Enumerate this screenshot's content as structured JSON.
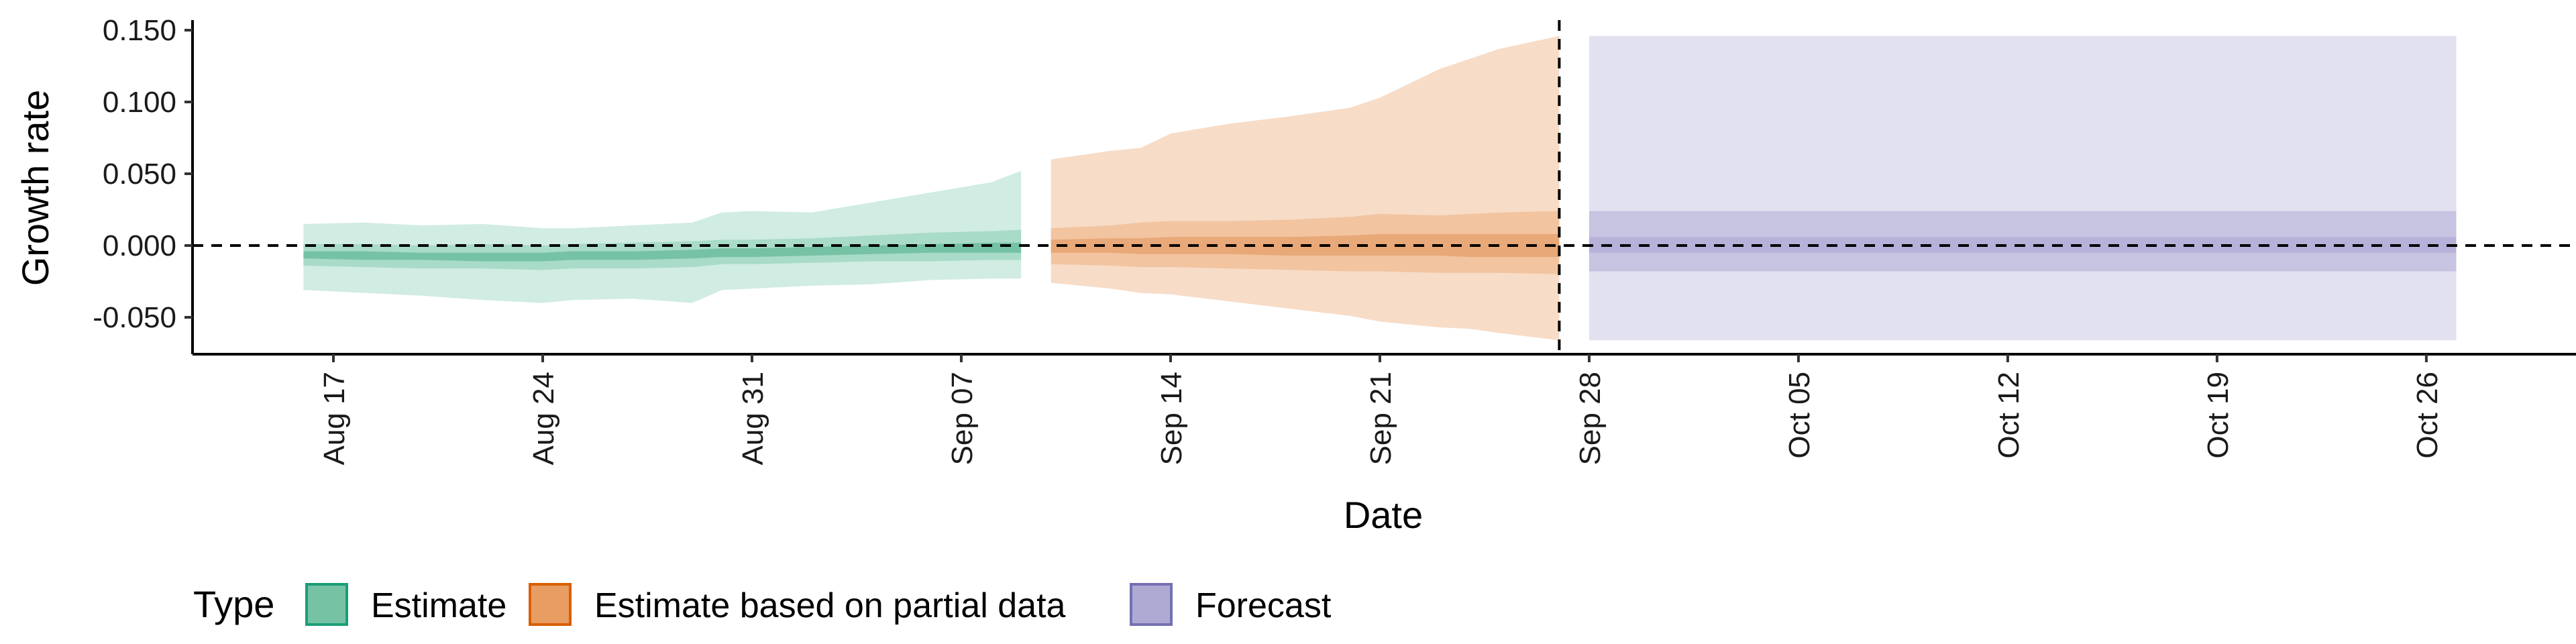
{
  "chart_data": {
    "type": "area",
    "title": "",
    "xlabel": "Date",
    "ylabel": "Growth rate",
    "x_axis_type": "date",
    "xlim": [
      "2020-08-11",
      "2020-10-30"
    ],
    "ylim": [
      -0.076,
      0.158
    ],
    "x_ticks": [
      {
        "date": "2020-08-17",
        "label": "Aug 17"
      },
      {
        "date": "2020-08-24",
        "label": "Aug 24"
      },
      {
        "date": "2020-08-31",
        "label": "Aug 31"
      },
      {
        "date": "2020-09-07",
        "label": "Sep 07"
      },
      {
        "date": "2020-09-14",
        "label": "Sep 14"
      },
      {
        "date": "2020-09-21",
        "label": "Sep 21"
      },
      {
        "date": "2020-09-28",
        "label": "Sep 28"
      },
      {
        "date": "2020-10-05",
        "label": "Oct 05"
      },
      {
        "date": "2020-10-12",
        "label": "Oct 12"
      },
      {
        "date": "2020-10-19",
        "label": "Oct 19"
      },
      {
        "date": "2020-10-26",
        "label": "Oct 26"
      }
    ],
    "y_ticks": [
      {
        "value": 0.15,
        "label": "0.150"
      },
      {
        "value": 0.1,
        "label": "0.100"
      },
      {
        "value": 0.05,
        "label": "0.050"
      },
      {
        "value": 0.0,
        "label": "0.000"
      },
      {
        "value": -0.05,
        "label": "-0.050"
      }
    ],
    "reference_lines": [
      {
        "axis": "y",
        "value": 0.0,
        "style": "dashed"
      },
      {
        "axis": "x",
        "date": "2020-09-27",
        "style": "dashed"
      }
    ],
    "grid": false,
    "legend": {
      "title": "Type",
      "placement": "bottom-left",
      "entries": [
        {
          "label": "Estimate",
          "fill": "#76c2a5",
          "border": "#1b9e77"
        },
        {
          "label": "Estimate based on partial data",
          "fill": "#e89d63",
          "border": "#d95f02"
        },
        {
          "label": "Forecast",
          "fill": "#aeaad4",
          "border": "#7570b3"
        }
      ]
    },
    "series": [
      {
        "name": "Estimate",
        "colors": {
          "outer": "#d1ece2",
          "mid": "#a8dbc8",
          "inner": "#76c2a5"
        },
        "dates": [
          "2020-08-16",
          "2020-08-18",
          "2020-08-20",
          "2020-08-22",
          "2020-08-24",
          "2020-08-25",
          "2020-08-27",
          "2020-08-29",
          "2020-08-30",
          "2020-08-31",
          "2020-09-02",
          "2020-09-04",
          "2020-09-06",
          "2020-09-08",
          "2020-09-09"
        ],
        "outer_upper": [
          0.015,
          0.016,
          0.014,
          0.015,
          0.012,
          0.012,
          0.014,
          0.016,
          0.023,
          0.024,
          0.023,
          0.03,
          0.037,
          0.044,
          0.052
        ],
        "outer_lower": [
          -0.031,
          -0.033,
          -0.035,
          -0.038,
          -0.04,
          -0.038,
          -0.037,
          -0.04,
          -0.031,
          -0.03,
          -0.028,
          -0.027,
          -0.024,
          -0.023,
          -0.023
        ],
        "mid_upper": [
          0.001,
          0.001,
          0.0,
          0.001,
          0.0,
          0.001,
          0.002,
          0.003,
          0.004,
          0.004,
          0.005,
          0.007,
          0.009,
          0.01,
          0.011
        ],
        "mid_lower": [
          -0.014,
          -0.015,
          -0.016,
          -0.016,
          -0.017,
          -0.016,
          -0.016,
          -0.015,
          -0.013,
          -0.013,
          -0.012,
          -0.011,
          -0.011,
          -0.01,
          -0.01
        ],
        "inner_upper": [
          -0.004,
          -0.004,
          -0.005,
          -0.005,
          -0.005,
          -0.004,
          -0.004,
          -0.003,
          -0.002,
          -0.002,
          -0.001,
          0.0,
          0.001,
          0.002,
          0.002
        ],
        "inner_lower": [
          -0.009,
          -0.01,
          -0.01,
          -0.011,
          -0.011,
          -0.01,
          -0.01,
          -0.009,
          -0.008,
          -0.008,
          -0.007,
          -0.006,
          -0.005,
          -0.005,
          -0.005
        ]
      },
      {
        "name": "Estimate based on partial data",
        "colors": {
          "outer": "#f7dcc7",
          "mid": "#f2c4a0",
          "inner": "#e8a878"
        },
        "dates": [
          "2020-09-10",
          "2020-09-12",
          "2020-09-13",
          "2020-09-14",
          "2020-09-16",
          "2020-09-18",
          "2020-09-20",
          "2020-09-21",
          "2020-09-23",
          "2020-09-24",
          "2020-09-25",
          "2020-09-27"
        ],
        "outer_upper": [
          0.06,
          0.066,
          0.068,
          0.078,
          0.085,
          0.09,
          0.096,
          0.103,
          0.123,
          0.13,
          0.137,
          0.146
        ],
        "outer_lower": [
          -0.026,
          -0.03,
          -0.033,
          -0.034,
          -0.039,
          -0.044,
          -0.049,
          -0.053,
          -0.057,
          -0.058,
          -0.061,
          -0.066
        ],
        "mid_upper": [
          0.012,
          0.014,
          0.016,
          0.017,
          0.017,
          0.018,
          0.02,
          0.022,
          0.021,
          0.022,
          0.023,
          0.024
        ],
        "mid_lower": [
          -0.013,
          -0.014,
          -0.015,
          -0.015,
          -0.016,
          -0.017,
          -0.018,
          -0.018,
          -0.019,
          -0.019,
          -0.019,
          -0.02
        ],
        "inner_upper": [
          0.004,
          0.005,
          0.005,
          0.006,
          0.006,
          0.006,
          0.007,
          0.008,
          0.008,
          0.008,
          0.008,
          0.008
        ],
        "inner_lower": [
          -0.005,
          -0.005,
          -0.006,
          -0.006,
          -0.006,
          -0.007,
          -0.007,
          -0.007,
          -0.007,
          -0.008,
          -0.008,
          -0.008
        ]
      },
      {
        "name": "Forecast",
        "colors": {
          "outer": "#e2e1ef",
          "mid": "#c7c4e2",
          "inner": "#b5b1d8"
        },
        "dates": [
          "2020-09-28",
          "2020-10-27"
        ],
        "outer_upper": [
          0.146,
          0.146
        ],
        "outer_lower": [
          -0.066,
          -0.066
        ],
        "mid_upper": [
          0.024,
          0.024
        ],
        "mid_lower": [
          -0.018,
          -0.018
        ],
        "inner_upper": [
          0.006,
          0.006
        ],
        "inner_lower": [
          -0.005,
          -0.005
        ]
      }
    ]
  }
}
